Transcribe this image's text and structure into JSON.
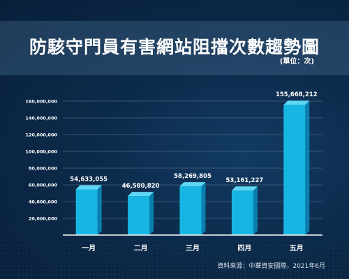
{
  "title": "防駭守門員有害網站阻擋次數趨勢圖",
  "unit_note": "(單位：次)",
  "source_note": "資料來源：中華資安國際，2021年6月",
  "colors": {
    "bar_front": "#17b6e2",
    "bar_side": "#0a7fae",
    "bar_top": "#5fd6f4",
    "grid": "#4a6580",
    "axis": "#ffffff"
  },
  "chart_data": {
    "type": "bar",
    "categories": [
      "一月",
      "二月",
      "三月",
      "四月",
      "五月"
    ],
    "values": [
      54633055,
      46580820,
      58269805,
      53161227,
      155668212
    ],
    "value_labels": [
      "54,633,055",
      "46,580,820",
      "58,269,805",
      "53,161,227",
      "155,668,212"
    ],
    "y_ticks": [
      20000000,
      40000000,
      60000000,
      80000000,
      100000000,
      120000000,
      140000000,
      160000000
    ],
    "y_tick_labels": [
      "20,000,000",
      "40,000,000",
      "60,000,000",
      "80,000,000",
      "100,000,000",
      "120,000,000",
      "140,000,000",
      "160,000,000"
    ],
    "ylim": [
      0,
      160000000
    ],
    "grid": true
  }
}
